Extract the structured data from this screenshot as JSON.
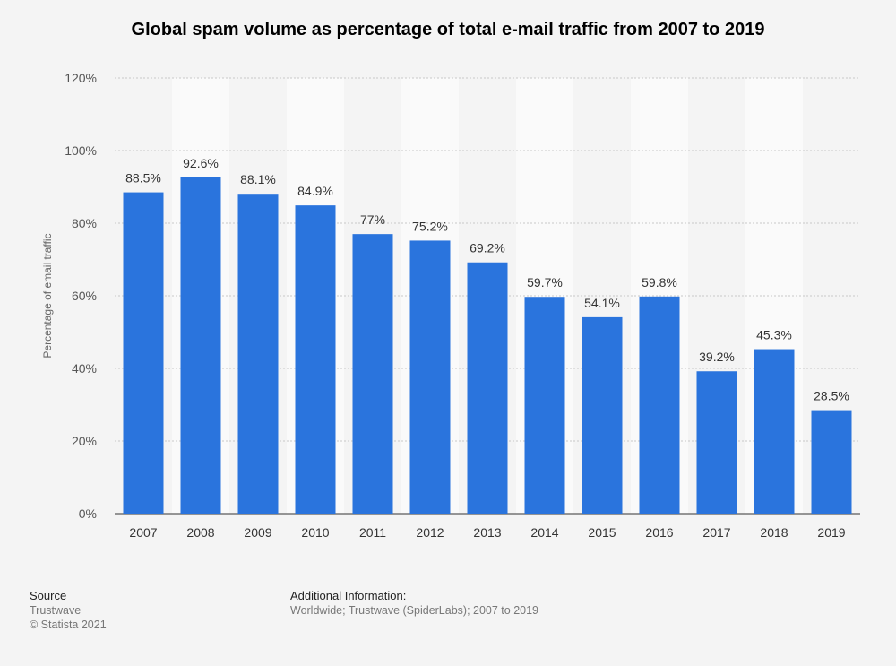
{
  "chart_data": {
    "type": "bar",
    "title": "Global spam volume as percentage of total e-mail traffic from 2007 to 2019",
    "ylabel": "Percentage of email traffic",
    "xlabel": "",
    "categories": [
      "2007",
      "2008",
      "2009",
      "2010",
      "2011",
      "2012",
      "2013",
      "2014",
      "2015",
      "2016",
      "2017",
      "2018",
      "2019"
    ],
    "values": [
      88.5,
      92.6,
      88.1,
      84.9,
      77,
      75.2,
      69.2,
      59.7,
      54.1,
      59.8,
      39.2,
      45.3,
      28.5
    ],
    "value_labels": [
      "88.5%",
      "92.6%",
      "88.1%",
      "84.9%",
      "77%",
      "75.2%",
      "69.2%",
      "59.7%",
      "54.1%",
      "59.8%",
      "39.2%",
      "45.3%",
      "28.5%"
    ],
    "ylim": [
      0,
      120
    ],
    "yticks": [
      0,
      20,
      40,
      60,
      80,
      100,
      120
    ],
    "ytick_labels": [
      "0%",
      "20%",
      "40%",
      "60%",
      "80%",
      "100%",
      "120%"
    ],
    "grid": true,
    "bar_color": "#2a74dd"
  },
  "footer": {
    "source_heading": "Source",
    "source_lines": [
      "Trustwave",
      "© Statista 2021"
    ],
    "info_heading": "Additional Information:",
    "info_text": "Worldwide; Trustwave (SpiderLabs); 2007 to 2019"
  }
}
